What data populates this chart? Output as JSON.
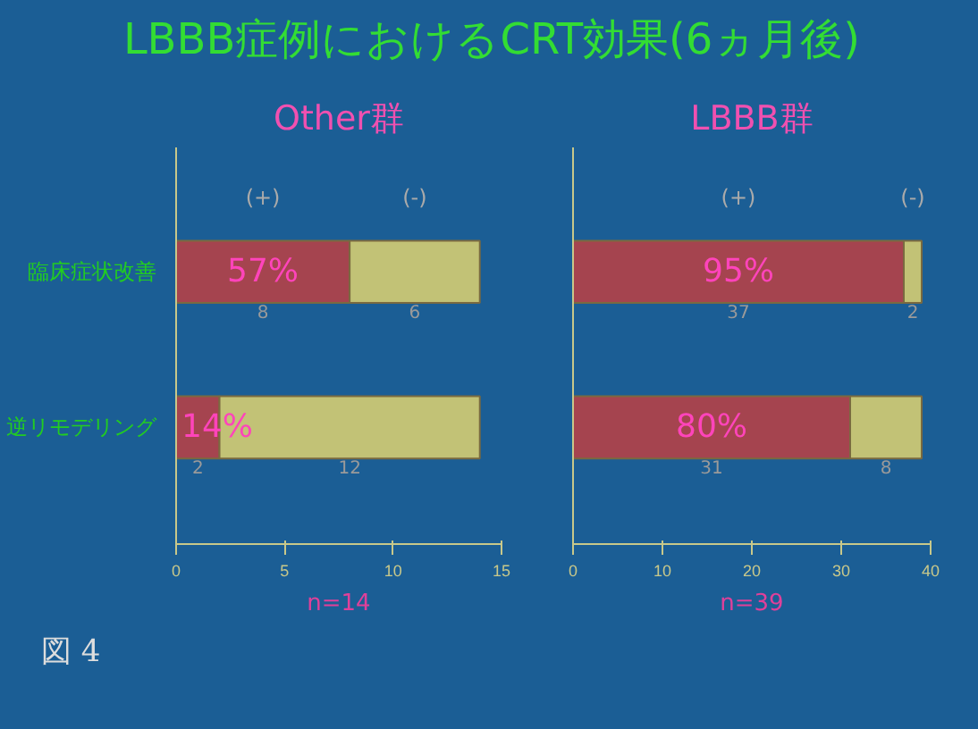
{
  "chart_data": [
    {
      "type": "bar",
      "orientation": "horizontal",
      "stacked": true,
      "title": "Other群",
      "xlabel": "n=14",
      "categories": [
        "臨床症状改善",
        "逆リモデリング"
      ],
      "series": [
        {
          "name": "(+)",
          "color": "#a5444f",
          "values": [
            8,
            2
          ]
        },
        {
          "name": "(-)",
          "color": "#c2c276",
          "values": [
            6,
            12
          ]
        }
      ],
      "xlim": [
        0,
        15
      ],
      "xticks": [
        0,
        5,
        10,
        15
      ],
      "data_labels": true,
      "annotations": [
        "LBBB症例におけるCRT効果(6ヵ月後)",
        "図 4",
        "57%",
        "14%"
      ]
    },
    {
      "type": "bar",
      "orientation": "horizontal",
      "stacked": true,
      "title": "LBBB群",
      "xlabel": "n=39",
      "categories": [
        null,
        null
      ],
      "series": [
        {
          "name": "(+)",
          "color": "#a5444f",
          "values": [
            37,
            31
          ]
        },
        {
          "name": "(-)",
          "color": "#c2c276",
          "values": [
            2,
            8
          ]
        }
      ],
      "xlim": [
        0,
        40
      ],
      "xticks": [
        0,
        10,
        20,
        30,
        40
      ],
      "data_labels": true,
      "annotations": [
        "95%",
        "80%"
      ]
    }
  ]
}
